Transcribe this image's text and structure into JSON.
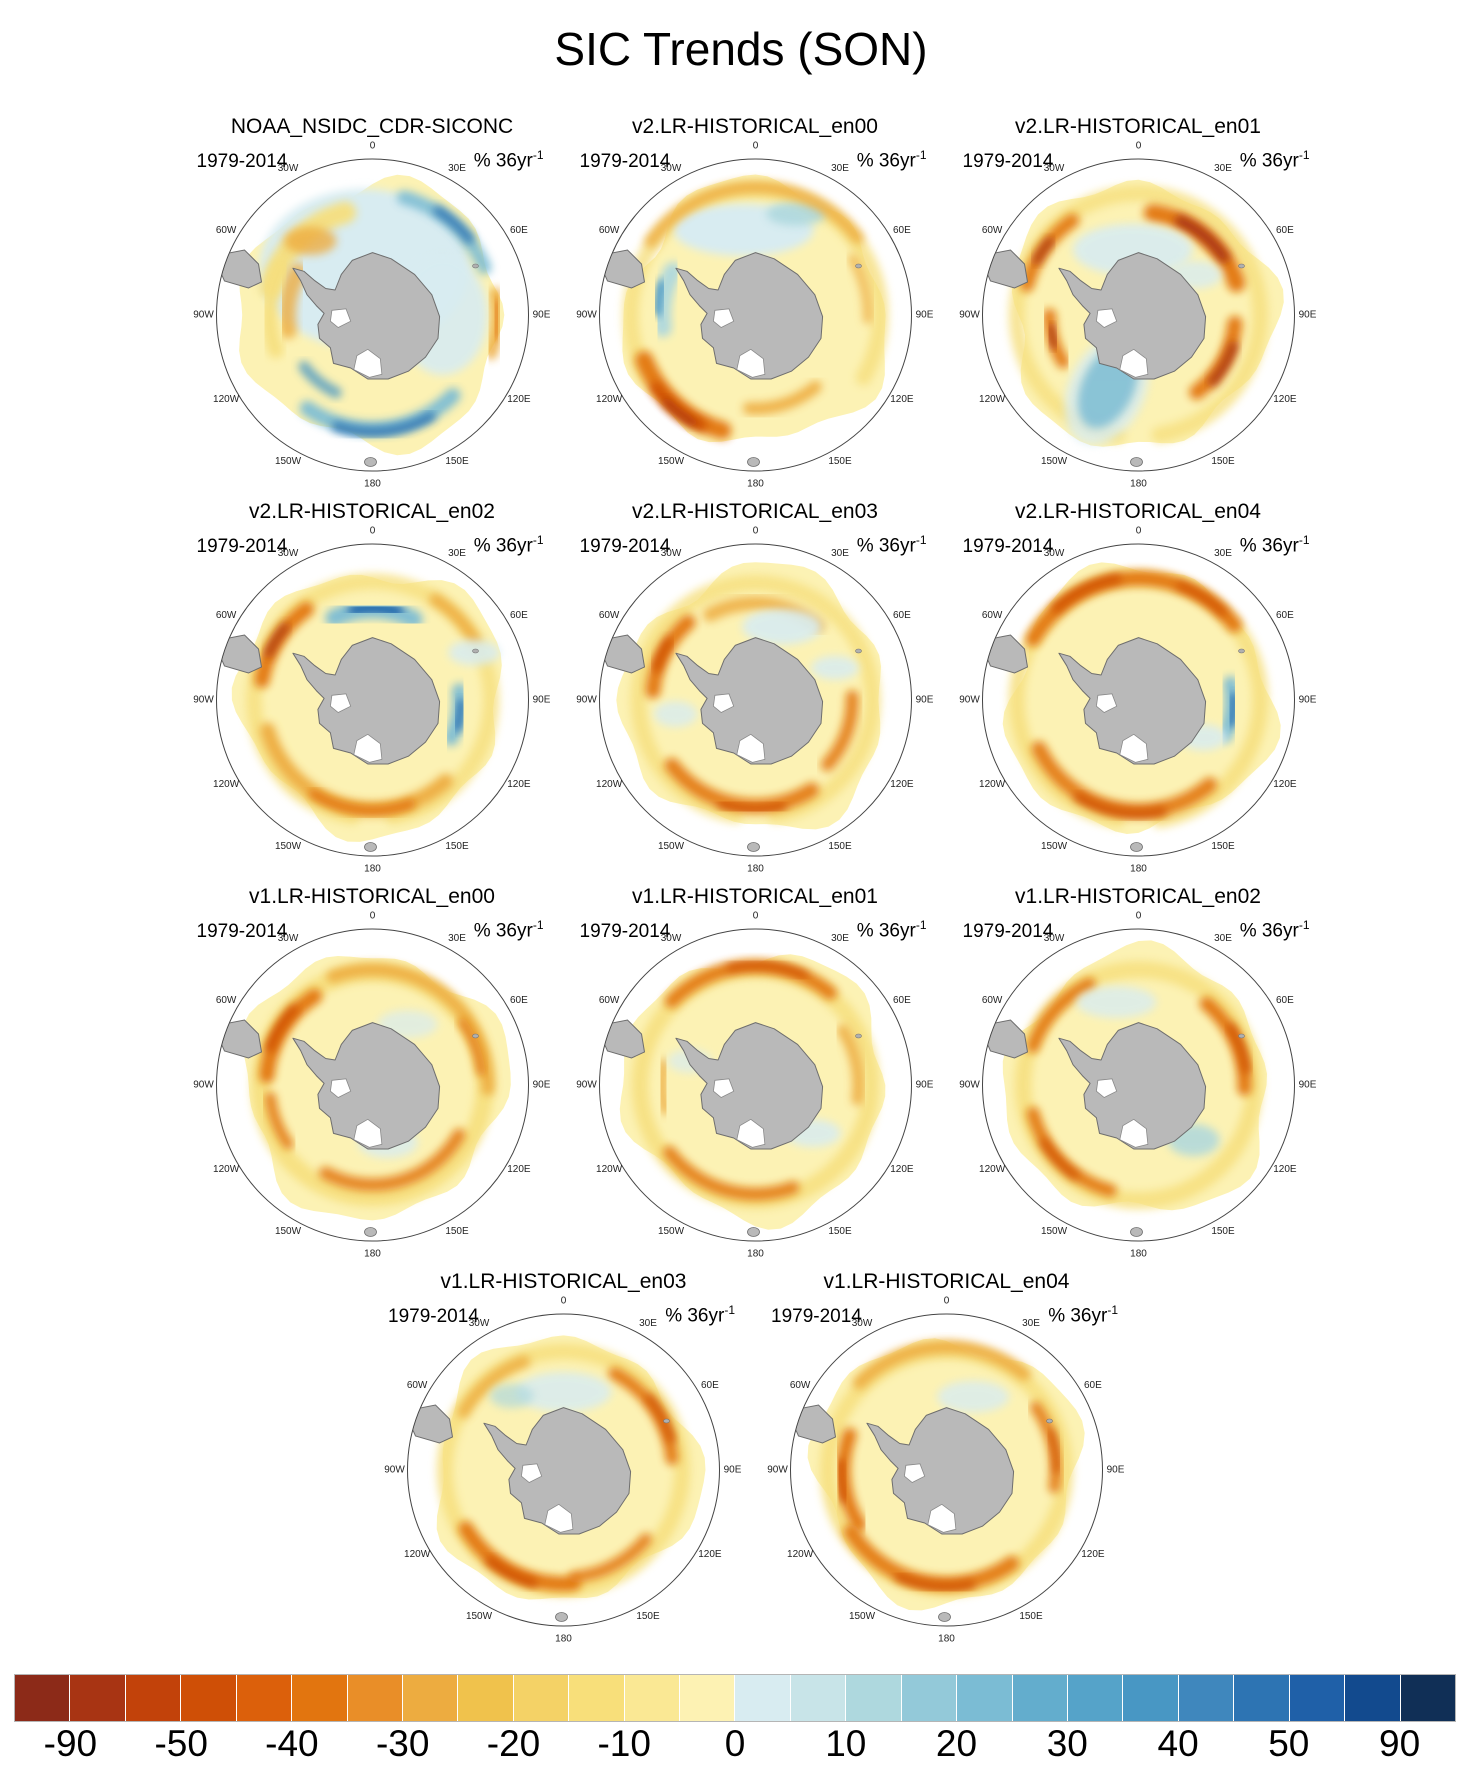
{
  "title": "SIC Trends (SON)",
  "panel_labels": {
    "period": "1979-2014",
    "units_base": "% 36yr",
    "units_exponent": "-1"
  },
  "panels": [
    {
      "name": "NOAA_NSIDC_CDR-SICONC",
      "pattern": "observations: pale blue (positive) interior with dark blue bands along 120W-180 coast and 30E-60E, yellow-orange patches in Weddell and 90E sectors"
    },
    {
      "name": "v2.LR-HISTORICAL_en00",
      "pattern": "strong orange decrease arc in Amundsen/Ross (SW), blue patch west of Peninsula, pale blue north-central, yellow ring elsewhere"
    },
    {
      "name": "v2.LR-HISTORICAL_en01",
      "pattern": "dark orange decreases NE (30E-60E), Peninsula, 90E-120E; small blue blob SW; yellow ring"
    },
    {
      "name": "v2.LR-HISTORICAL_en02",
      "pattern": "dark blue increase band near 0-30W, blue arc at 90E, orange arcs NW and along southern ring"
    },
    {
      "name": "v2.LR-HISTORICAL_en03",
      "pattern": "orange decrease arcs NW and south, pale blue patches NE, yellow ring"
    },
    {
      "name": "v2.LR-HISTORICAL_en04",
      "pattern": "orange ring with strong northern arc, dark blue arc at 90E, orange south"
    },
    {
      "name": "v1.LR-HISTORICAL_en00",
      "pattern": "orange decrease ring, strongest NW near Peninsula, pale blue pocket south-interior"
    },
    {
      "name": "v1.LR-HISTORICAL_en01",
      "pattern": "moderate orange ring, strongest north, pale blue pockets SE interior"
    },
    {
      "name": "v1.LR-HISTORICAL_en02",
      "pattern": "orange ring with strong 60E-90E arc, blue patch SE interior"
    },
    {
      "name": "v1.LR-HISTORICAL_en03",
      "pattern": "orange ring, strong dark arc SW (150W-120W), pale blue north interior"
    },
    {
      "name": "v1.LR-HISTORICAL_en04",
      "pattern": "orange ring, strong dark arcs west (90W) and south, orange 90E"
    }
  ],
  "longitude_labels": [
    "0",
    "30E",
    "60E",
    "90E",
    "120E",
    "150E",
    "180",
    "150W",
    "120W",
    "90W",
    "60W",
    "30W"
  ],
  "colorbar": {
    "tick_labels": [
      "-90",
      "-50",
      "-40",
      "-30",
      "-20",
      "-10",
      "0",
      "10",
      "20",
      "30",
      "40",
      "50",
      "90"
    ],
    "cell_colors": [
      "#8C2A18",
      "#A83413",
      "#C2420A",
      "#CF4F06",
      "#DC600B",
      "#E2750F",
      "#E98E28",
      "#EDAC40",
      "#F0C24C",
      "#F4D266",
      "#F8DF7A",
      "#FAE894",
      "#FDF2B3",
      "#D8ECF1",
      "#C8E4E8",
      "#AED8DE",
      "#93C9D9",
      "#7BBCD4",
      "#63ADCD",
      "#55A3C9",
      "#4897C4",
      "#3F87BD",
      "#2D74B3",
      "#1F60A8",
      "#124A8E",
      "#102F56"
    ]
  },
  "chart_data": {
    "type": "heatmap",
    "title": "SIC Trends (SON)",
    "season": "SON",
    "period": "1979-2014",
    "units": "% 36yr⁻¹",
    "projection": "south polar stereographic, Antarctica centered, longitude labels every 30 degrees",
    "panels": [
      "NOAA_NSIDC_CDR-SICONC",
      "v2.LR-HISTORICAL_en00",
      "v2.LR-HISTORICAL_en01",
      "v2.LR-HISTORICAL_en02",
      "v2.LR-HISTORICAL_en03",
      "v2.LR-HISTORICAL_en04",
      "v1.LR-HISTORICAL_en00",
      "v1.LR-HISTORICAL_en01",
      "v1.LR-HISTORICAL_en02",
      "v1.LR-HISTORICAL_en03",
      "v1.LR-HISTORICAL_en04"
    ],
    "grid_layout": [
      [
        0,
        1,
        2
      ],
      [
        3,
        4,
        5
      ],
      [
        6,
        7,
        8
      ],
      [
        9,
        10
      ]
    ],
    "colorbar": {
      "tick_values": [
        -90,
        -50,
        -40,
        -30,
        -20,
        -10,
        0,
        10,
        20,
        30,
        40,
        50,
        90
      ],
      "cell_colors": [
        "#8C2A18",
        "#A83413",
        "#C2420A",
        "#CF4F06",
        "#DC600B",
        "#E2750F",
        "#E98E28",
        "#EDAC40",
        "#F0C24C",
        "#F4D266",
        "#F8DF7A",
        "#FAE894",
        "#FDF2B3",
        "#D8ECF1",
        "#C8E4E8",
        "#AED8DE",
        "#93C9D9",
        "#7BBCD4",
        "#63ADCD",
        "#55A3C9",
        "#4897C4",
        "#3F87BD",
        "#2D74B3",
        "#1F60A8",
        "#124A8E",
        "#102F56"
      ],
      "orientation": "horizontal",
      "negative_side": "warm colors (sea-ice concentration decrease)",
      "positive_side": "blue colors (sea-ice concentration increase)"
    }
  }
}
